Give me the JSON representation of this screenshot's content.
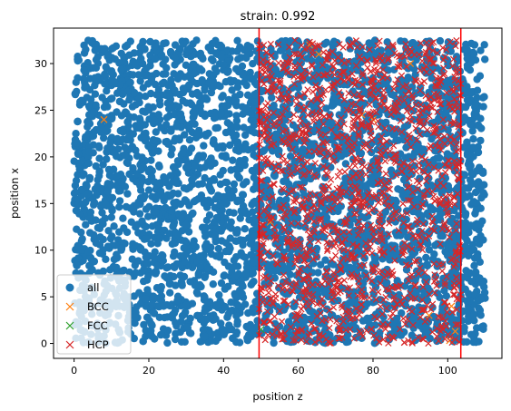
{
  "chart_data": {
    "type": "scatter",
    "title": "strain: 0.992",
    "xlabel": "position z",
    "ylabel": "position x",
    "xlim": [
      -5.5,
      114.5
    ],
    "ylim": [
      -1.6,
      33.8
    ],
    "xticks": [
      0,
      20,
      40,
      60,
      80,
      100
    ],
    "yticks": [
      0,
      5,
      10,
      15,
      20,
      25,
      30
    ],
    "grid": false,
    "legend_position": "lower-left",
    "vlines": [
      {
        "x": 49.5,
        "color": "#ff0000"
      },
      {
        "x": 103.5,
        "color": "#ff0000"
      }
    ],
    "series": [
      {
        "name": "all",
        "marker": "circle",
        "color": "#1f77b4",
        "region": {
          "xmin": 0,
          "xmax": 110,
          "ymin": 0,
          "ymax": 32.5
        },
        "count": 3800
      },
      {
        "name": "BCC",
        "marker": "x",
        "color": "#ff7f0e",
        "points": [
          [
            8,
            24
          ],
          [
            52.5,
            13
          ],
          [
            63,
            32
          ],
          [
            65.5,
            31
          ],
          [
            77,
            24.5
          ],
          [
            80,
            24
          ],
          [
            90,
            30
          ],
          [
            100.5,
            0.3
          ],
          [
            102,
            1.3
          ],
          [
            101,
            4
          ],
          [
            95,
            3
          ]
        ]
      },
      {
        "name": "FCC",
        "marker": "x",
        "color": "#2ca02c",
        "points": [
          [
            50,
            1.5
          ]
        ]
      },
      {
        "name": "HCP",
        "marker": "x",
        "color": "#d62728",
        "region": {
          "xmin": 49.5,
          "xmax": 103.5,
          "ymin": 0,
          "ymax": 32.5
        },
        "count": 1400
      }
    ]
  }
}
